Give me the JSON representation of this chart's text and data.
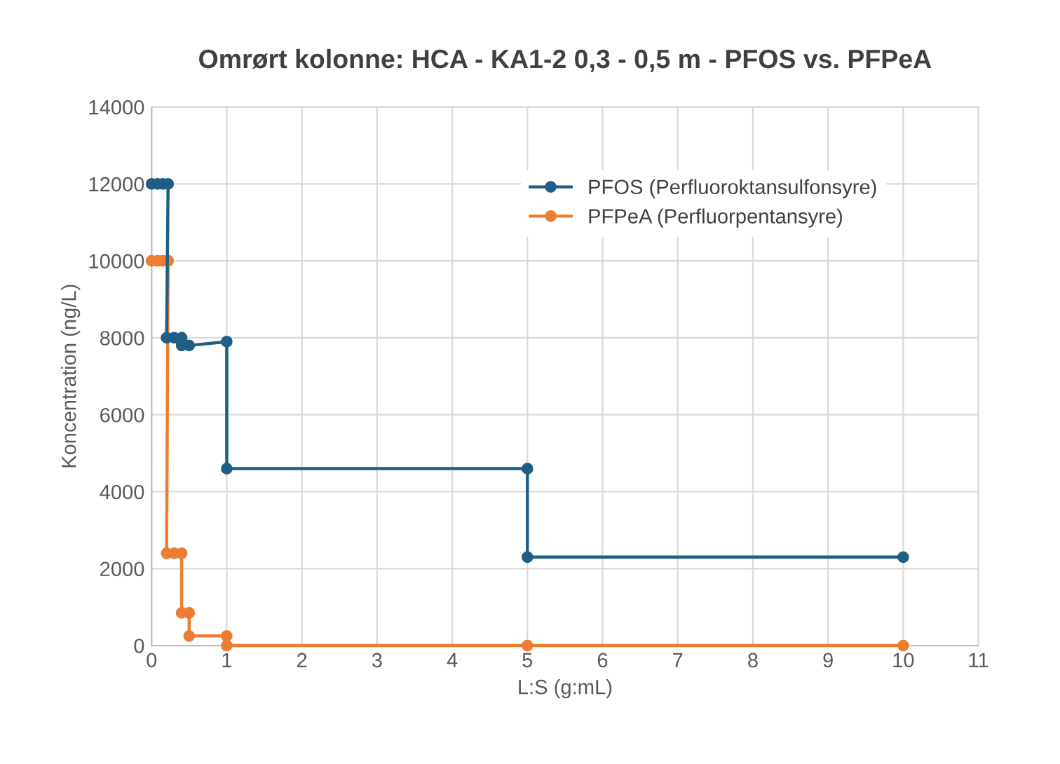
{
  "chart_data": {
    "type": "line",
    "title": "Omrørt kolonne: HCA - KA1-2 0,3 - 0,5 m - PFOS vs. PFPeA",
    "xlabel": "L:S (g:mL)",
    "ylabel": "Koncentration (ng/L)",
    "xlim": [
      0,
      11
    ],
    "xticks": [
      0,
      1,
      2,
      3,
      4,
      5,
      6,
      7,
      8,
      9,
      10,
      11
    ],
    "ylim": [
      0,
      14000
    ],
    "yticks": [
      0,
      2000,
      4000,
      6000,
      8000,
      10000,
      12000,
      14000
    ],
    "grid": true,
    "legend": "top right",
    "marker": "circle",
    "line_style": "solid",
    "series": [
      {
        "name": "PFOS (Perfluoroktansulfonsyre)",
        "color": "#1f5f86",
        "x": [
          0,
          0.08,
          0.15,
          0.22,
          0.2,
          0.3,
          0.4,
          0.4,
          0.5,
          1,
          1,
          5,
          5,
          10
        ],
        "values": [
          12000,
          12000,
          12000,
          12000,
          8000,
          8000,
          8000,
          7800,
          7800,
          7900,
          4600,
          4600,
          2300,
          2300
        ]
      },
      {
        "name": "PFPeA (Perfluorpentansyre)",
        "color": "#ed7d31",
        "x": [
          0,
          0.08,
          0.15,
          0.22,
          0.2,
          0.3,
          0.4,
          0.4,
          0.5,
          0.5,
          1,
          1,
          5,
          10
        ],
        "values": [
          10000,
          10000,
          10000,
          10000,
          2400,
          2400,
          2400,
          850,
          850,
          250,
          250,
          0,
          0,
          0
        ]
      }
    ]
  }
}
